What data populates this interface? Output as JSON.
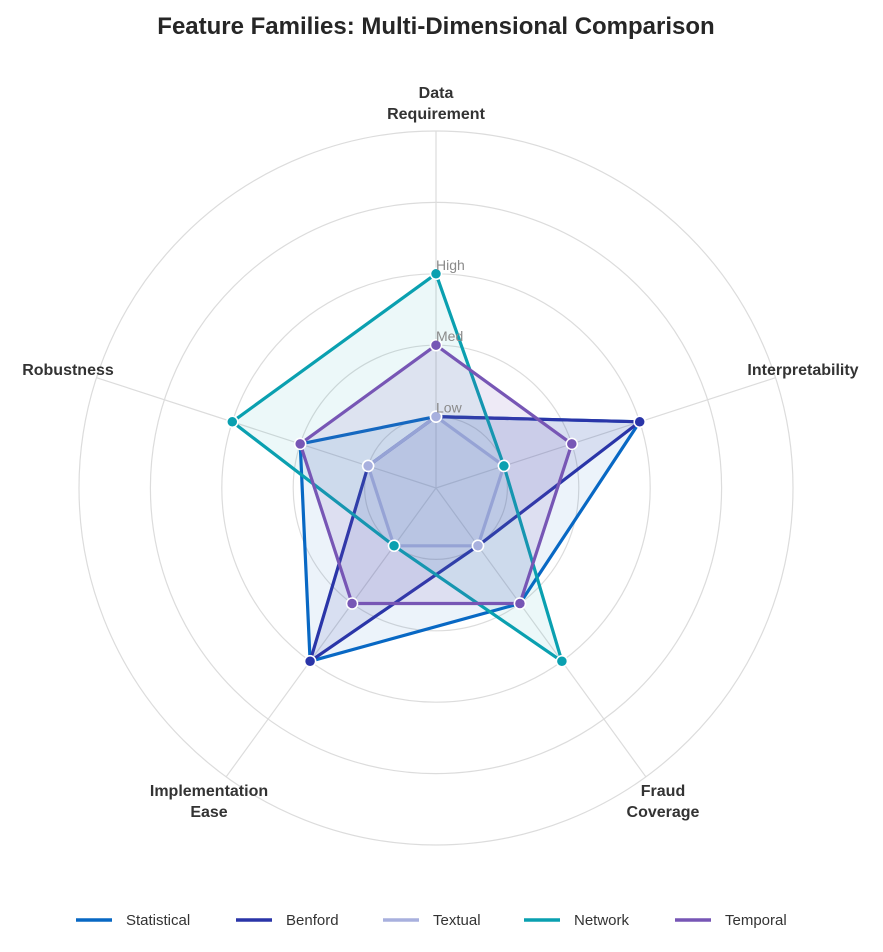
{
  "chart_data": {
    "type": "radar",
    "title": "Feature Families: Multi-Dimensional Comparison",
    "axes": [
      [
        "Data",
        "Requirement"
      ],
      [
        "Interpretability"
      ],
      [
        "Fraud",
        "Coverage"
      ],
      [
        "Implementation",
        "Ease"
      ],
      [
        "Robustness"
      ]
    ],
    "rlim": [
      0,
      5
    ],
    "ticks": [
      {
        "value": 1,
        "label": "Low"
      },
      {
        "value": 2,
        "label": "Med"
      },
      {
        "value": 3,
        "label": "High"
      }
    ],
    "grid_values": [
      1,
      2,
      3,
      4,
      5
    ],
    "series": [
      {
        "name": "Statistical",
        "color": "#0868c4",
        "fill_opacity": 0.08,
        "values": [
          1,
          3,
          2,
          3,
          2
        ]
      },
      {
        "name": "Benford",
        "color": "#2a35a8",
        "fill_opacity": 0.1,
        "values": [
          1,
          3,
          1,
          3,
          1
        ]
      },
      {
        "name": "Textual",
        "color": "#a8b0de",
        "fill_opacity": 0.1,
        "values": [
          1,
          1,
          1,
          1,
          1
        ]
      },
      {
        "name": "Network",
        "color": "#0aa0b0",
        "fill_opacity": 0.08,
        "values": [
          3,
          1,
          3,
          1,
          3
        ]
      },
      {
        "name": "Temporal",
        "color": "#7756b5",
        "fill_opacity": 0.12,
        "values": [
          2,
          2,
          2,
          2,
          2
        ]
      }
    ],
    "legend_position": "bottom"
  }
}
